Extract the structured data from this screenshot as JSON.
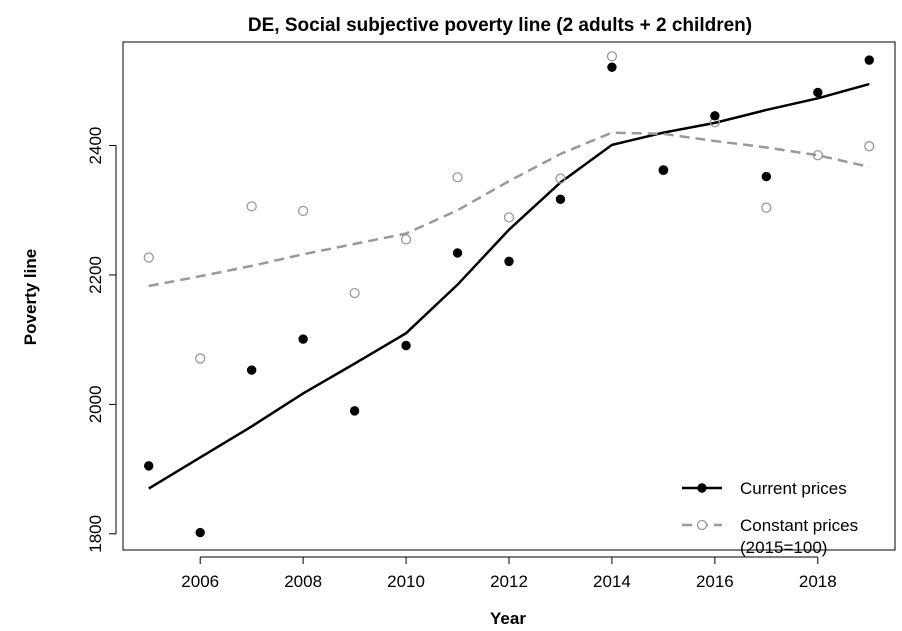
{
  "chart_data": {
    "type": "scatter",
    "title": "DE, Social subjective poverty line (2 adults + 2 children)",
    "xlabel": "Year",
    "ylabel": "Poverty line",
    "xlim": [
      2004.5,
      2019.5
    ],
    "ylim": [
      1775,
      2560
    ],
    "x_ticks": [
      2006,
      2008,
      2010,
      2012,
      2014,
      2016,
      2018
    ],
    "y_ticks": [
      1800,
      2000,
      2200,
      2400
    ],
    "grid": false,
    "legend_position": "bottom-right",
    "series": [
      {
        "name": "Current prices",
        "marker": "filled-circle",
        "color": "#000000",
        "line_style": "solid",
        "x": [
          2005,
          2006,
          2007,
          2008,
          2009,
          2010,
          2011,
          2012,
          2013,
          2014,
          2015,
          2016,
          2017,
          2018,
          2019
        ],
        "points": [
          1905,
          1802,
          2053,
          2101,
          1990,
          2091,
          2234,
          2221,
          2317,
          2521,
          2362,
          2446,
          2352,
          2482,
          2532
        ],
        "trend": [
          1870,
          1918,
          1966,
          2017,
          2063,
          2110,
          2185,
          2270,
          2343,
          2401,
          2420,
          2435,
          2455,
          2473,
          2495
        ]
      },
      {
        "name": "Constant prices\n(2015=100)",
        "marker": "open-circle",
        "color": "#999999",
        "line_style": "dashed",
        "x": [
          2005,
          2006,
          2007,
          2008,
          2009,
          2010,
          2011,
          2012,
          2013,
          2014,
          2015,
          2016,
          2017,
          2018,
          2019
        ],
        "points": [
          2227,
          2071,
          2306,
          2299,
          2172,
          2255,
          2351,
          2289,
          2349,
          2538,
          2362,
          2436,
          2304,
          2385,
          2399
        ],
        "trend": [
          2183,
          2198,
          2214,
          2232,
          2248,
          2264,
          2300,
          2345,
          2387,
          2420,
          2418,
          2407,
          2397,
          2385,
          2367
        ]
      }
    ]
  }
}
